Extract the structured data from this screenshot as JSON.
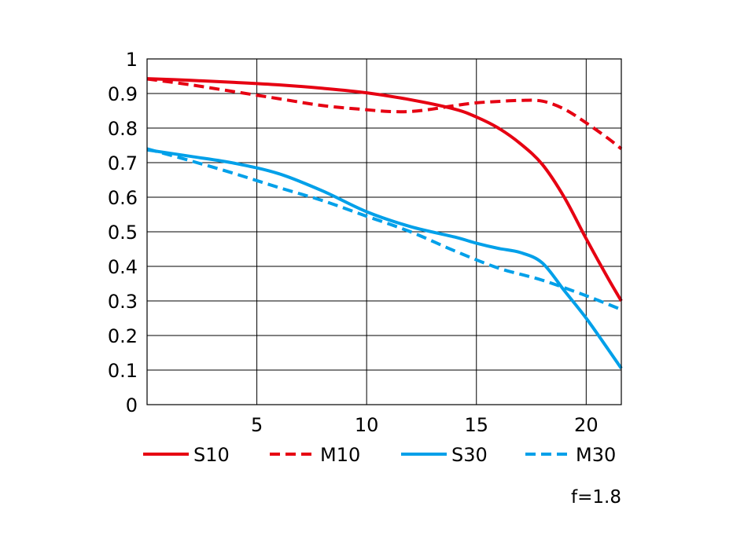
{
  "chart_data": {
    "type": "line",
    "x_ticks": [
      5,
      10,
      15,
      20
    ],
    "y_ticks": [
      "0",
      "0.1",
      "0.2",
      "0.3",
      "0.4",
      "0.5",
      "0.6",
      "0.7",
      "0.8",
      "0.9",
      "1"
    ],
    "xlim": [
      0,
      21.6
    ],
    "ylim": [
      0,
      1
    ],
    "grid": true,
    "legend_position": "bottom",
    "annotation": "f=1.8",
    "series": [
      {
        "name": "S10",
        "color": "#e60012",
        "dash": "solid",
        "x": [
          0,
          2,
          4,
          6,
          8,
          10,
          12,
          14,
          15,
          16,
          17,
          18,
          19,
          20,
          21,
          21.6
        ],
        "y": [
          0.943,
          0.938,
          0.932,
          0.925,
          0.915,
          0.902,
          0.882,
          0.855,
          0.832,
          0.8,
          0.755,
          0.695,
          0.6,
          0.48,
          0.365,
          0.3
        ]
      },
      {
        "name": "M10",
        "color": "#e60012",
        "dash": "dashed",
        "x": [
          0,
          2,
          4,
          6,
          8,
          10,
          11,
          12,
          13,
          14,
          15,
          16,
          17,
          18,
          19,
          20,
          21,
          21.6
        ],
        "y": [
          0.942,
          0.925,
          0.905,
          0.885,
          0.865,
          0.853,
          0.848,
          0.848,
          0.855,
          0.865,
          0.873,
          0.877,
          0.88,
          0.878,
          0.855,
          0.815,
          0.77,
          0.74
        ]
      },
      {
        "name": "S30",
        "color": "#00a0e9",
        "dash": "solid",
        "x": [
          0,
          2,
          4,
          6,
          8,
          10,
          12,
          14,
          15,
          16,
          17,
          18,
          19,
          20,
          21,
          21.6
        ],
        "y": [
          0.737,
          0.718,
          0.698,
          0.668,
          0.618,
          0.558,
          0.515,
          0.485,
          0.467,
          0.452,
          0.44,
          0.41,
          0.33,
          0.25,
          0.16,
          0.105
        ]
      },
      {
        "name": "M30",
        "color": "#00a0e9",
        "dash": "dashed",
        "x": [
          0,
          2,
          4,
          6,
          8,
          10,
          12,
          14,
          16,
          18,
          20,
          21.6
        ],
        "y": [
          0.74,
          0.705,
          0.668,
          0.628,
          0.59,
          0.545,
          0.5,
          0.445,
          0.395,
          0.36,
          0.315,
          0.275
        ]
      }
    ]
  }
}
